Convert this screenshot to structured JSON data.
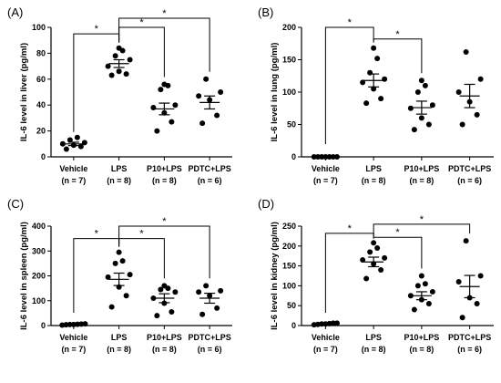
{
  "chart_data": [
    {
      "panel_label": "(A)",
      "type": "scatter",
      "ylabel": "IL-6 level in liver (pg/ml)",
      "ylim": [
        0,
        100
      ],
      "yticks": [
        0,
        20,
        40,
        60,
        80,
        100
      ],
      "categories": [
        "Vehicle",
        "LPS",
        "P10+LPS",
        "PDTC+LPS"
      ],
      "group_n": [
        "(n = 7)",
        "(n = 8)",
        "(n = 8)",
        "(n = 6)"
      ],
      "groups": [
        {
          "points": [
            6,
            8,
            9,
            10,
            11,
            13,
            15
          ],
          "mean": 10,
          "sem": 1.3
        },
        {
          "points": [
            63,
            64,
            66,
            70,
            75,
            78,
            82,
            84
          ],
          "mean": 72,
          "sem": 3
        },
        {
          "points": [
            20,
            27,
            34,
            38,
            40,
            52,
            55,
            56
          ],
          "mean": 37,
          "sem": 4.5
        },
        {
          "points": [
            26,
            32,
            44,
            47,
            50,
            60
          ],
          "mean": 42,
          "sem": 5
        }
      ],
      "significance": [
        {
          "from": 0,
          "to": 1,
          "y": 95,
          "label": "*"
        },
        {
          "from": 1,
          "to": 2,
          "y": 100,
          "label": "*"
        },
        {
          "from": 1,
          "to": 3,
          "y": 112,
          "label": "*"
        }
      ]
    },
    {
      "panel_label": "(B)",
      "type": "scatter",
      "ylabel": "IL-6 level in lung (pg/ml)",
      "ylim": [
        0,
        200
      ],
      "yticks": [
        0,
        50,
        100,
        150,
        200
      ],
      "categories": [
        "Vehicle",
        "LPS",
        "P10+LPS",
        "PDTC+LPS"
      ],
      "group_n": [
        "(n = 7)",
        "(n = 8)",
        "(n = 8)",
        "(n = 6)"
      ],
      "groups": [
        {
          "points": [
            0,
            0,
            0,
            0,
            0,
            0,
            0
          ],
          "mean": 0,
          "sem": 0
        },
        {
          "points": [
            83,
            90,
            105,
            115,
            120,
            130,
            152,
            168
          ],
          "mean": 118,
          "sem": 10
        },
        {
          "points": [
            42,
            50,
            60,
            75,
            80,
            100,
            110,
            118
          ],
          "mean": 76,
          "sem": 10
        },
        {
          "points": [
            50,
            65,
            85,
            100,
            120,
            162
          ],
          "mean": 94,
          "sem": 18
        }
      ],
      "significance": [
        {
          "from": 0,
          "to": 1,
          "y": 200,
          "label": "*"
        },
        {
          "from": 1,
          "to": 2,
          "y": 182,
          "label": "*"
        }
      ]
    },
    {
      "panel_label": "(C)",
      "type": "scatter",
      "ylabel": "IL-6 level in spleen (pg/ml)",
      "ylim": [
        0,
        400
      ],
      "yticks": [
        0,
        100,
        200,
        300,
        400
      ],
      "categories": [
        "Vehicle",
        "LPS",
        "P10+LPS",
        "PDTC+LPS"
      ],
      "group_n": [
        "(n = 7)",
        "(n = 8)",
        "(n = 8)",
        "(n = 6)"
      ],
      "groups": [
        {
          "points": [
            2,
            3,
            4,
            4,
            5,
            6,
            7
          ],
          "mean": 4,
          "sem": 1
        },
        {
          "points": [
            75,
            120,
            155,
            195,
            205,
            250,
            260,
            295
          ],
          "mean": 186,
          "sem": 25
        },
        {
          "points": [
            40,
            55,
            90,
            110,
            135,
            145,
            150,
            160
          ],
          "mean": 110,
          "sem": 18
        },
        {
          "points": [
            45,
            70,
            120,
            135,
            140,
            160
          ],
          "mean": 110,
          "sem": 20
        }
      ],
      "significance": [
        {
          "from": 0,
          "to": 1,
          "y": 350,
          "label": "*"
        },
        {
          "from": 1,
          "to": 2,
          "y": 350,
          "label": "*"
        },
        {
          "from": 1,
          "to": 3,
          "y": 400,
          "label": "*"
        }
      ]
    },
    {
      "panel_label": "(D)",
      "type": "scatter",
      "ylabel": "IL-6 level in kidney (pg/ml)",
      "ylim": [
        0,
        250
      ],
      "yticks": [
        0,
        50,
        100,
        150,
        200,
        250
      ],
      "categories": [
        "Vehicle",
        "LPS",
        "P10+LPS",
        "PDTC+LPS"
      ],
      "group_n": [
        "(n = 7)",
        "(n = 8)",
        "(n = 8)",
        "(n = 6)"
      ],
      "groups": [
        {
          "points": [
            2,
            3,
            4,
            4,
            5,
            6,
            6
          ],
          "mean": 4,
          "sem": 0.6
        },
        {
          "points": [
            118,
            140,
            155,
            165,
            170,
            185,
            195,
            208
          ],
          "mean": 160,
          "sem": 12
        },
        {
          "points": [
            40,
            55,
            65,
            75,
            85,
            100,
            105,
            125
          ],
          "mean": 75,
          "sem": 10
        },
        {
          "points": [
            20,
            55,
            70,
            110,
            125,
            213
          ],
          "mean": 98,
          "sem": 28
        }
      ],
      "significance": [
        {
          "from": 0,
          "to": 1,
          "y": 232,
          "label": "*"
        },
        {
          "from": 1,
          "to": 2,
          "y": 222,
          "label": "*"
        },
        {
          "from": 1,
          "to": 3,
          "y": 255,
          "label": "*"
        }
      ]
    }
  ]
}
